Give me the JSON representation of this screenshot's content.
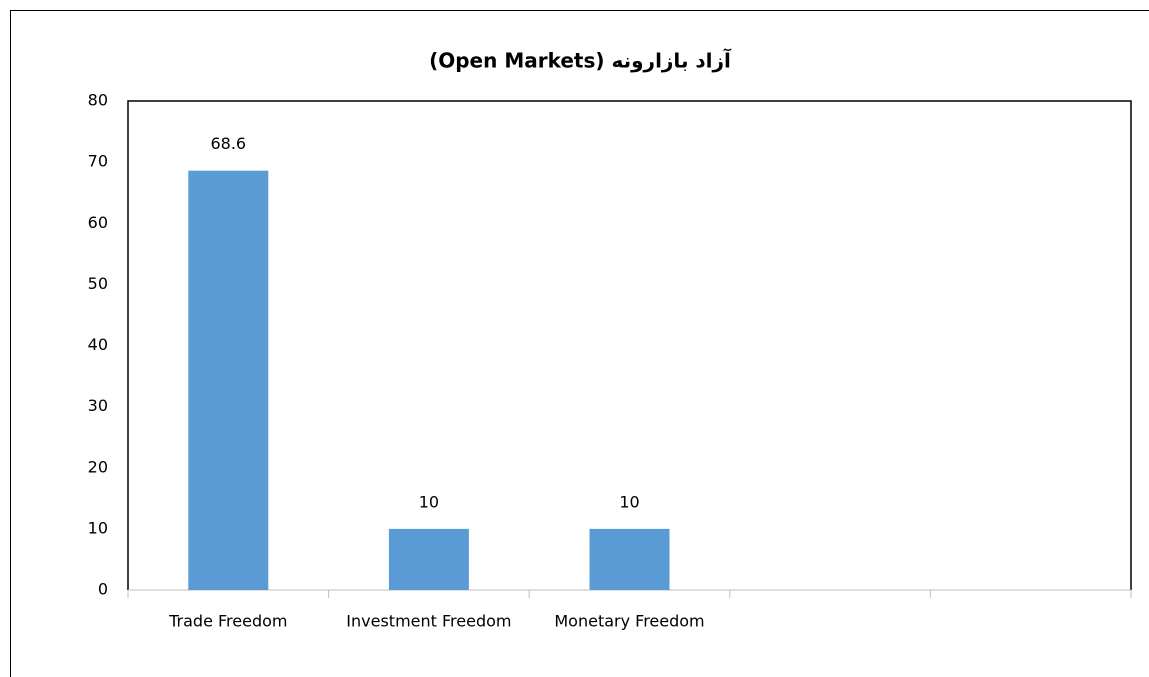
{
  "chart_data": {
    "type": "bar",
    "title": "آزاد بازارونه (Open Markets)",
    "categories": [
      "Trade Freedom",
      "Investment Freedom",
      "Monetary Freedom",
      null,
      null
    ],
    "values": [
      68.6,
      10,
      10,
      null,
      null
    ],
    "color": "#5b9bd5",
    "ylim": [
      0,
      80
    ],
    "yticks": [
      0,
      10,
      20,
      30,
      40,
      50,
      60,
      70,
      80
    ],
    "grid": false
  }
}
